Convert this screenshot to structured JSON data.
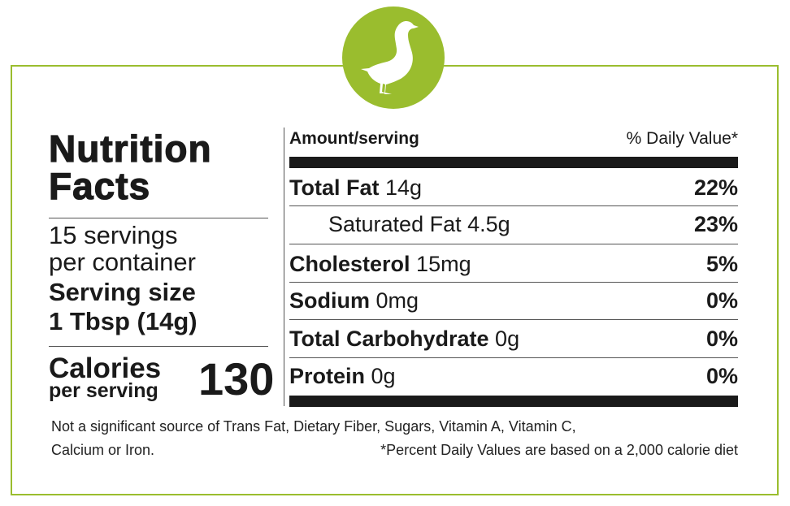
{
  "brand_color": "#9abd2e",
  "logo_icon": "goose-icon",
  "title_line1": "Nutrition",
  "title_line2": "Facts",
  "servings": "15 servings",
  "servings2": "per container",
  "serving_size_label": "Serving size",
  "serving_size": "1 Tbsp (14g)",
  "calories_label": "Calories",
  "calories_sub": "per serving",
  "calories": "130",
  "header": {
    "left": "Amount/serving",
    "right": "% Daily Value*"
  },
  "rows": [
    {
      "name": "Total Fat",
      "amount": "14g",
      "dv": "22%",
      "bold": true
    },
    {
      "name": "Saturated Fat",
      "amount": "4.5g",
      "dv": "23%",
      "bold": false
    },
    {
      "name": "Cholesterol",
      "amount": "15mg",
      "dv": "5%",
      "bold": true
    },
    {
      "name": "Sodium",
      "amount": "0mg",
      "dv": "0%",
      "bold": true
    },
    {
      "name": "Total Carbohydrate",
      "amount": "0g",
      "dv": "0%",
      "bold": true
    },
    {
      "name": "Protein",
      "amount": "0g",
      "dv": "0%",
      "bold": true
    }
  ],
  "footnote1": "Not a significant source of Trans Fat, Dietary Fiber, Sugars, Vitamin A, Vitamin C,",
  "footnote2a": "Calcium or Iron.",
  "footnote2b": "*Percent Daily Values are based on a 2,000 calorie diet"
}
